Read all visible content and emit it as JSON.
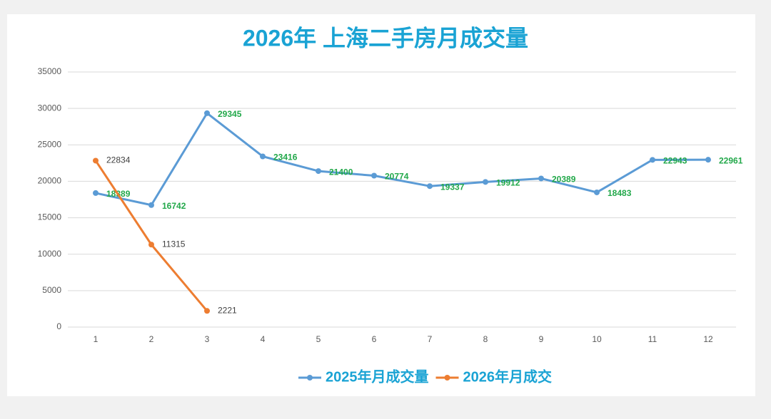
{
  "chart_data": {
    "type": "line",
    "title": "2026年 上海二手房月成交量",
    "categories": [
      "1",
      "2",
      "3",
      "4",
      "5",
      "6",
      "7",
      "8",
      "9",
      "10",
      "11",
      "12"
    ],
    "series": [
      {
        "name": "2025年月成交量",
        "color": "#5b9bd5",
        "label_color": "#22a84a",
        "values": [
          18389,
          16742,
          29345,
          23416,
          21400,
          20774,
          19337,
          19912,
          20389,
          18483,
          22943,
          22961
        ]
      },
      {
        "name": "2026年月成交",
        "color": "#ed7d31",
        "label_color": "#404040",
        "values": [
          22834,
          11315,
          2221,
          null,
          null,
          null,
          null,
          null,
          null,
          null,
          null,
          null
        ]
      }
    ],
    "ylim": [
      0,
      35000
    ],
    "yticks": [
      0,
      5000,
      10000,
      15000,
      20000,
      25000,
      30000,
      35000
    ],
    "grid": true,
    "legend": "bottom"
  }
}
